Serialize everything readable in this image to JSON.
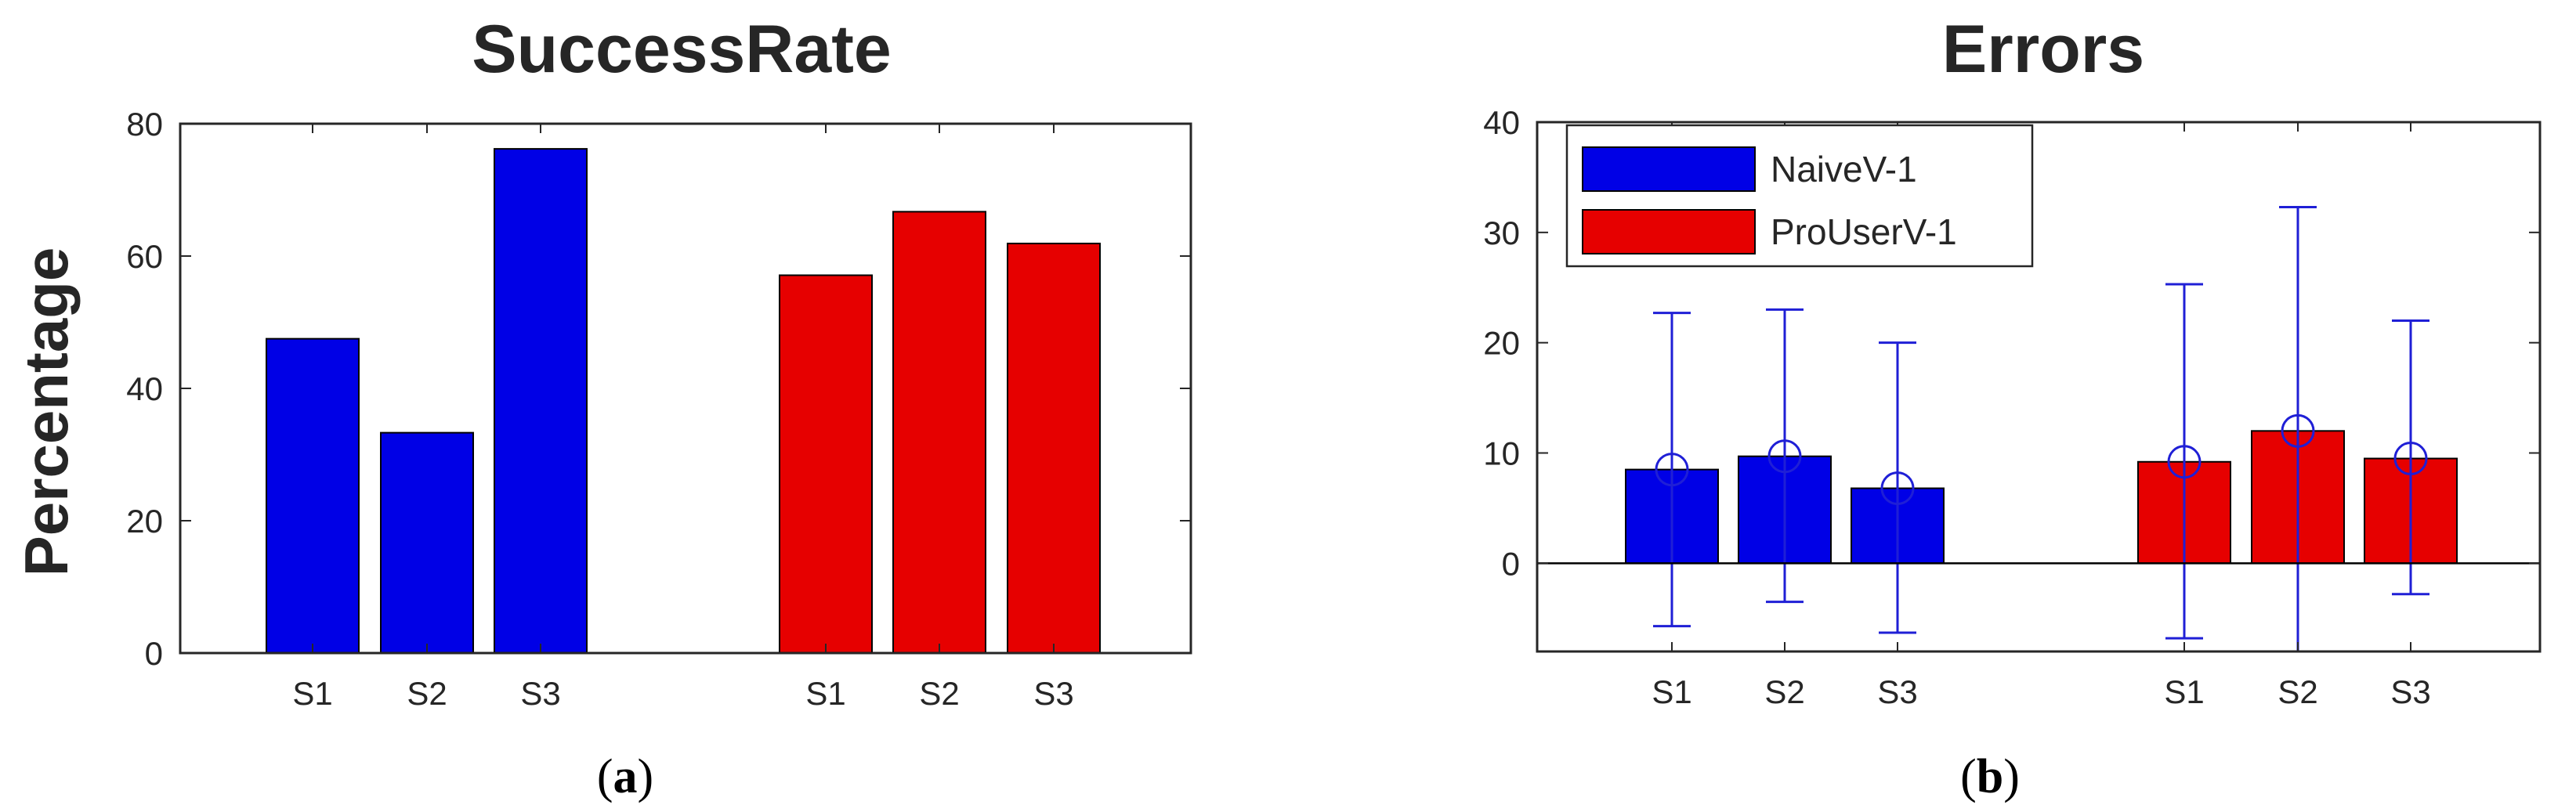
{
  "colors": {
    "naive": "#0000e6",
    "pro": "#e60000",
    "errorbar": "#1f1fd6",
    "axis": "#262626"
  },
  "panels": [
    {
      "letter": "a"
    },
    {
      "letter": "b"
    }
  ],
  "chart_data": [
    {
      "type": "bar",
      "title": "SuccessRate",
      "xlabel": "",
      "ylabel": "Percentage",
      "ylim": [
        0,
        80
      ],
      "yticks": [
        0,
        20,
        40,
        60,
        80
      ],
      "grid": false,
      "groups": [
        {
          "categories": [
            "S1",
            "S2",
            "S3"
          ],
          "color": "naive",
          "values": [
            47.5,
            33.3,
            76.2
          ]
        },
        {
          "categories": [
            "S1",
            "S2",
            "S3"
          ],
          "color": "pro",
          "values": [
            57.1,
            66.7,
            61.9
          ]
        }
      ]
    },
    {
      "type": "bar",
      "title": "Errors",
      "xlabel": "",
      "ylabel": "",
      "ylim": [
        -8,
        40
      ],
      "yticks": [
        0,
        10,
        20,
        30,
        40
      ],
      "grid": false,
      "legend_position": "top-left",
      "series": [
        {
          "name": "NaiveV-1",
          "color": "naive",
          "categories": [
            "S1",
            "S2",
            "S3"
          ],
          "values": [
            8.5,
            9.7,
            6.8
          ],
          "error_high": [
            22.7,
            23.0,
            20.0
          ],
          "error_low": [
            -5.7,
            -3.5,
            -6.3
          ]
        },
        {
          "name": "ProUserV-1",
          "color": "pro",
          "categories": [
            "S1",
            "S2",
            "S3"
          ],
          "values": [
            9.2,
            12.0,
            9.5
          ],
          "error_high": [
            25.3,
            32.3,
            22.0
          ],
          "error_low": [
            -6.8,
            -8.0,
            -2.8
          ]
        }
      ]
    }
  ]
}
